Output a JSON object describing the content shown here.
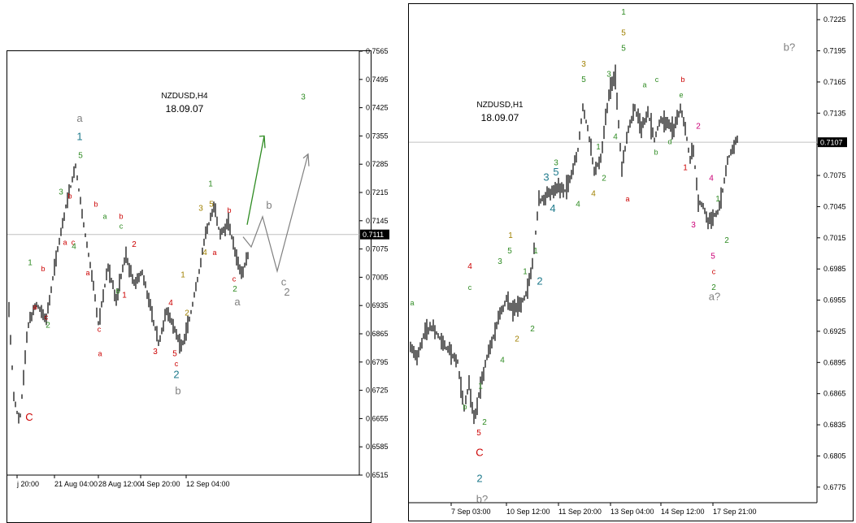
{
  "colors": {
    "bar": "#000000",
    "grid": "#c0c0c0",
    "label_red": "#cc0000",
    "label_green": "#2e8b22",
    "label_olive": "#a08000",
    "label_gray": "#808080",
    "label_teal": "#1f7a8c",
    "label_magenta": "#cc0077",
    "price_box_bg": "#000000",
    "price_box_fg": "#ffffff",
    "arrow_green": "#2e8b22",
    "arrow_gray": "#808080"
  },
  "chart_data": [
    {
      "type": "bar",
      "symbol_title": "NZDUSD,H4",
      "date_text": "18.09.07",
      "ylim": [
        0.6515,
        0.7565
      ],
      "y_ticks": [
        "0.7565",
        "0.7495",
        "0.7425",
        "0.7355",
        "0.7285",
        "0.7215",
        "0.7145",
        "0.7075",
        "0.7005",
        "0.6935",
        "0.6865",
        "0.6795",
        "0.6725",
        "0.6655",
        "0.6585",
        "0.6515"
      ],
      "x_ticks": [
        "j 20:00",
        "21 Aug 04:00",
        "28 Aug 12:00",
        "4 Sep 20:00",
        "12 Sep 04:00"
      ],
      "current_price": "0.7111",
      "price_path": [
        [
          0,
          0.7
        ],
        [
          8,
          0.671
        ],
        [
          15,
          0.664
        ],
        [
          25,
          0.688
        ],
        [
          35,
          0.694
        ],
        [
          48,
          0.69
        ],
        [
          60,
          0.705
        ],
        [
          72,
          0.718
        ],
        [
          84,
          0.728
        ],
        [
          95,
          0.712
        ],
        [
          105,
          0.7
        ],
        [
          112,
          0.689
        ],
        [
          124,
          0.703
        ],
        [
          134,
          0.695
        ],
        [
          146,
          0.706
        ],
        [
          156,
          0.699
        ],
        [
          166,
          0.702
        ],
        [
          176,
          0.693
        ],
        [
          186,
          0.684
        ],
        [
          196,
          0.692
        ],
        [
          206,
          0.688
        ],
        [
          214,
          0.683
        ],
        [
          224,
          0.69
        ],
        [
          234,
          0.7
        ],
        [
          244,
          0.711
        ],
        [
          254,
          0.718
        ],
        [
          262,
          0.711
        ],
        [
          272,
          0.714
        ],
        [
          280,
          0.707
        ],
        [
          288,
          0.701
        ],
        [
          296,
          0.706
        ]
      ],
      "wave_labels": [
        {
          "t": "C",
          "c": "red",
          "x": 27,
          "v": 0.665
        },
        {
          "t": "1",
          "c": "green",
          "x": 28,
          "v": 0.7035
        },
        {
          "t": "a",
          "c": "red",
          "x": 34,
          "v": 0.6925
        },
        {
          "t": "b",
          "c": "red",
          "x": 44,
          "v": 0.702
        },
        {
          "t": "c",
          "c": "red",
          "x": 48,
          "v": 0.69
        },
        {
          "t": "2",
          "c": "green",
          "x": 50,
          "v": 0.688
        },
        {
          "t": "3",
          "c": "green",
          "x": 66,
          "v": 0.721
        },
        {
          "t": "a",
          "c": "red",
          "x": 71,
          "v": 0.7085
        },
        {
          "t": "c",
          "c": "red",
          "x": 81,
          "v": 0.7085
        },
        {
          "t": "4",
          "c": "green",
          "x": 82,
          "v": 0.7075
        },
        {
          "t": "b",
          "c": "red",
          "x": 77,
          "v": 0.72
        },
        {
          "t": "5",
          "c": "green",
          "x": 90,
          "v": 0.73
        },
        {
          "t": "1",
          "c": "teal",
          "x": 89,
          "v": 0.7345
        },
        {
          "t": "a",
          "c": "gray",
          "x": 89,
          "v": 0.739
        },
        {
          "t": "b",
          "c": "red",
          "x": 109,
          "v": 0.718
        },
        {
          "t": "a",
          "c": "red",
          "x": 99,
          "v": 0.701
        },
        {
          "t": "c",
          "c": "red",
          "x": 113,
          "v": 0.687
        },
        {
          "t": "a",
          "c": "red",
          "x": 114,
          "v": 0.681
        },
        {
          "t": "a",
          "c": "green",
          "x": 120,
          "v": 0.715
        },
        {
          "t": "b",
          "c": "green",
          "x": 136,
          "v": 0.6965
        },
        {
          "t": "1",
          "c": "red",
          "x": 144,
          "v": 0.6955
        },
        {
          "t": "b",
          "c": "red",
          "x": 140,
          "v": 0.715
        },
        {
          "t": "c",
          "c": "green",
          "x": 140,
          "v": 0.7125
        },
        {
          "t": "2",
          "c": "red",
          "x": 156,
          "v": 0.708
        },
        {
          "t": "3",
          "c": "red",
          "x": 182,
          "v": 0.6815
        },
        {
          "t": "4",
          "c": "red",
          "x": 201,
          "v": 0.6935
        },
        {
          "t": "1",
          "c": "olive",
          "x": 216,
          "v": 0.7005
        },
        {
          "t": "2",
          "c": "olive",
          "x": 221,
          "v": 0.691
        },
        {
          "t": "5",
          "c": "red",
          "x": 206,
          "v": 0.681
        },
        {
          "t": "c",
          "c": "red",
          "x": 208,
          "v": 0.6785
        },
        {
          "t": "2",
          "c": "teal",
          "x": 208,
          "v": 0.6755
        },
        {
          "t": "b",
          "c": "gray",
          "x": 210,
          "v": 0.6715
        },
        {
          "t": "3",
          "c": "olive",
          "x": 238,
          "v": 0.717
        },
        {
          "t": "4",
          "c": "olive",
          "x": 243,
          "v": 0.706
        },
        {
          "t": "1",
          "c": "green",
          "x": 250,
          "v": 0.723
        },
        {
          "t": "5",
          "c": "olive",
          "x": 251,
          "v": 0.718
        },
        {
          "t": "a",
          "c": "red",
          "x": 255,
          "v": 0.706
        },
        {
          "t": "b",
          "c": "red",
          "x": 273,
          "v": 0.7165
        },
        {
          "t": "c",
          "c": "red",
          "x": 279,
          "v": 0.6995
        },
        {
          "t": "2",
          "c": "green",
          "x": 280,
          "v": 0.697
        },
        {
          "t": "a",
          "c": "gray",
          "x": 283,
          "v": 0.6935
        },
        {
          "t": "b",
          "c": "gray",
          "x": 322,
          "v": 0.7175
        },
        {
          "t": "c",
          "c": "gray",
          "x": 340,
          "v": 0.6985
        },
        {
          "t": "2",
          "c": "gray",
          "x": 344,
          "v": 0.696
        },
        {
          "t": "3",
          "c": "green",
          "x": 364,
          "v": 0.7445
        }
      ]
    },
    {
      "type": "bar",
      "symbol_title": "NZDUSD,H1",
      "date_text": "18.09.07",
      "ylim": [
        0.676,
        0.724
      ],
      "y_ticks": [
        "0.7225",
        "0.7195",
        "0.7165",
        "0.7135",
        "0.7105",
        "0.7075",
        "0.7045",
        "0.7015",
        "0.6985",
        "0.6955",
        "0.6925",
        "0.6895",
        "0.6865",
        "0.6835",
        "0.6805",
        "0.6775"
      ],
      "x_ticks": [
        "7 Sep 03:00",
        "10 Sep 12:00",
        "11 Sep 20:00",
        "13 Sep 04:00",
        "14 Sep 12:00",
        "17 Sep 21:00"
      ],
      "current_price": "0.7107",
      "price_path": [
        [
          0,
          0.691
        ],
        [
          10,
          0.69
        ],
        [
          20,
          0.6925
        ],
        [
          30,
          0.693
        ],
        [
          40,
          0.6915
        ],
        [
          50,
          0.6905
        ],
        [
          60,
          0.6895
        ],
        [
          68,
          0.685
        ],
        [
          74,
          0.6875
        ],
        [
          80,
          0.684
        ],
        [
          88,
          0.687
        ],
        [
          96,
          0.69
        ],
        [
          104,
          0.692
        ],
        [
          112,
          0.694
        ],
        [
          120,
          0.6955
        ],
        [
          128,
          0.6945
        ],
        [
          136,
          0.695
        ],
        [
          144,
          0.696
        ],
        [
          152,
          0.699
        ],
        [
          160,
          0.705
        ],
        [
          168,
          0.7055
        ],
        [
          176,
          0.706
        ],
        [
          184,
          0.7065
        ],
        [
          192,
          0.706
        ],
        [
          200,
          0.7075
        ],
        [
          208,
          0.71
        ],
        [
          214,
          0.714
        ],
        [
          220,
          0.712
        ],
        [
          228,
          0.708
        ],
        [
          236,
          0.709
        ],
        [
          242,
          0.713
        ],
        [
          248,
          0.716
        ],
        [
          254,
          0.717
        ],
        [
          262,
          0.708
        ],
        [
          270,
          0.712
        ],
        [
          278,
          0.714
        ],
        [
          286,
          0.712
        ],
        [
          294,
          0.7135
        ],
        [
          302,
          0.711
        ],
        [
          310,
          0.713
        ],
        [
          318,
          0.7125
        ],
        [
          326,
          0.712
        ],
        [
          334,
          0.714
        ],
        [
          340,
          0.712
        ],
        [
          346,
          0.709
        ],
        [
          350,
          0.71
        ],
        [
          356,
          0.705
        ],
        [
          362,
          0.7045
        ],
        [
          368,
          0.703
        ],
        [
          374,
          0.7035
        ],
        [
          380,
          0.704
        ],
        [
          386,
          0.706
        ],
        [
          392,
          0.709
        ],
        [
          398,
          0.71
        ],
        [
          404,
          0.711
        ]
      ],
      "wave_labels": [
        {
          "t": "a",
          "c": "green",
          "x": 4,
          "v": 0.695
        },
        {
          "t": "b",
          "c": "green",
          "x": 69,
          "v": 0.685
        },
        {
          "t": "5",
          "c": "red",
          "x": 86,
          "v": 0.6825
        },
        {
          "t": "C",
          "c": "red",
          "x": 87,
          "v": 0.6805
        },
        {
          "t": "2",
          "c": "teal",
          "x": 87,
          "v": 0.678
        },
        {
          "t": "b?",
          "c": "gray",
          "x": 90,
          "v": 0.676
        },
        {
          "t": "2",
          "c": "green",
          "x": 93,
          "v": 0.6835
        },
        {
          "t": "1",
          "c": "green",
          "x": 88,
          "v": 0.687
        },
        {
          "t": "4",
          "c": "red",
          "x": 75,
          "v": 0.6985
        },
        {
          "t": "c",
          "c": "green",
          "x": 75,
          "v": 0.6965
        },
        {
          "t": "4",
          "c": "green",
          "x": 115,
          "v": 0.6895
        },
        {
          "t": "3",
          "c": "green",
          "x": 112,
          "v": 0.699
        },
        {
          "t": "1",
          "c": "olive",
          "x": 125,
          "v": 0.7015
        },
        {
          "t": "5",
          "c": "green",
          "x": 124,
          "v": 0.7
        },
        {
          "t": "2",
          "c": "olive",
          "x": 133,
          "v": 0.6915
        },
        {
          "t": "1",
          "c": "green",
          "x": 143,
          "v": 0.698
        },
        {
          "t": "2",
          "c": "green",
          "x": 152,
          "v": 0.6925
        },
        {
          "t": "1",
          "c": "green",
          "x": 156,
          "v": 0.7
        },
        {
          "t": "2",
          "c": "teal",
          "x": 161,
          "v": 0.697
        },
        {
          "t": "3",
          "c": "green",
          "x": 181,
          "v": 0.7085
        },
        {
          "t": "5",
          "c": "teal",
          "x": 181,
          "v": 0.7075
        },
        {
          "t": "3",
          "c": "teal",
          "x": 169,
          "v": 0.707
        },
        {
          "t": "4",
          "c": "teal",
          "x": 177,
          "v": 0.704
        },
        {
          "t": "4",
          "c": "green",
          "x": 208,
          "v": 0.7045
        },
        {
          "t": "3",
          "c": "olive",
          "x": 215,
          "v": 0.718
        },
        {
          "t": "5",
          "c": "green",
          "x": 215,
          "v": 0.7165
        },
        {
          "t": "4",
          "c": "olive",
          "x": 227,
          "v": 0.7055
        },
        {
          "t": "1",
          "c": "green",
          "x": 233,
          "v": 0.71
        },
        {
          "t": "2",
          "c": "green",
          "x": 240,
          "v": 0.707
        },
        {
          "t": "3",
          "c": "green",
          "x": 246,
          "v": 0.717
        },
        {
          "t": "4",
          "c": "green",
          "x": 254,
          "v": 0.711
        },
        {
          "t": "1",
          "c": "green",
          "x": 264,
          "v": 0.723
        },
        {
          "t": "5",
          "c": "olive",
          "x": 264,
          "v": 0.721
        },
        {
          "t": "5",
          "c": "green",
          "x": 264,
          "v": 0.7195
        },
        {
          "t": "a",
          "c": "red",
          "x": 269,
          "v": 0.705
        },
        {
          "t": "a",
          "c": "green",
          "x": 290,
          "v": 0.716
        },
        {
          "t": "c",
          "c": "green",
          "x": 305,
          "v": 0.7165
        },
        {
          "t": "b",
          "c": "green",
          "x": 304,
          "v": 0.7095
        },
        {
          "t": "d",
          "c": "green",
          "x": 321,
          "v": 0.7105
        },
        {
          "t": "e",
          "c": "green",
          "x": 335,
          "v": 0.715
        },
        {
          "t": "b",
          "c": "red",
          "x": 337,
          "v": 0.7165
        },
        {
          "t": "1",
          "c": "red",
          "x": 340,
          "v": 0.708
        },
        {
          "t": "2",
          "c": "magenta",
          "x": 356,
          "v": 0.712
        },
        {
          "t": "4",
          "c": "magenta",
          "x": 372,
          "v": 0.707
        },
        {
          "t": "3",
          "c": "magenta",
          "x": 350,
          "v": 0.7025
        },
        {
          "t": "1",
          "c": "green",
          "x": 380,
          "v": 0.705
        },
        {
          "t": "2",
          "c": "green",
          "x": 391,
          "v": 0.701
        },
        {
          "t": "5",
          "c": "magenta",
          "x": 374,
          "v": 0.6995
        },
        {
          "t": "c",
          "c": "red",
          "x": 375,
          "v": 0.698
        },
        {
          "t": "2",
          "c": "green",
          "x": 375,
          "v": 0.6965
        },
        {
          "t": "a?",
          "c": "gray",
          "x": 376,
          "v": 0.6955
        },
        {
          "t": "b?",
          "c": "gray",
          "x": 468,
          "v": 0.7195
        }
      ]
    }
  ]
}
